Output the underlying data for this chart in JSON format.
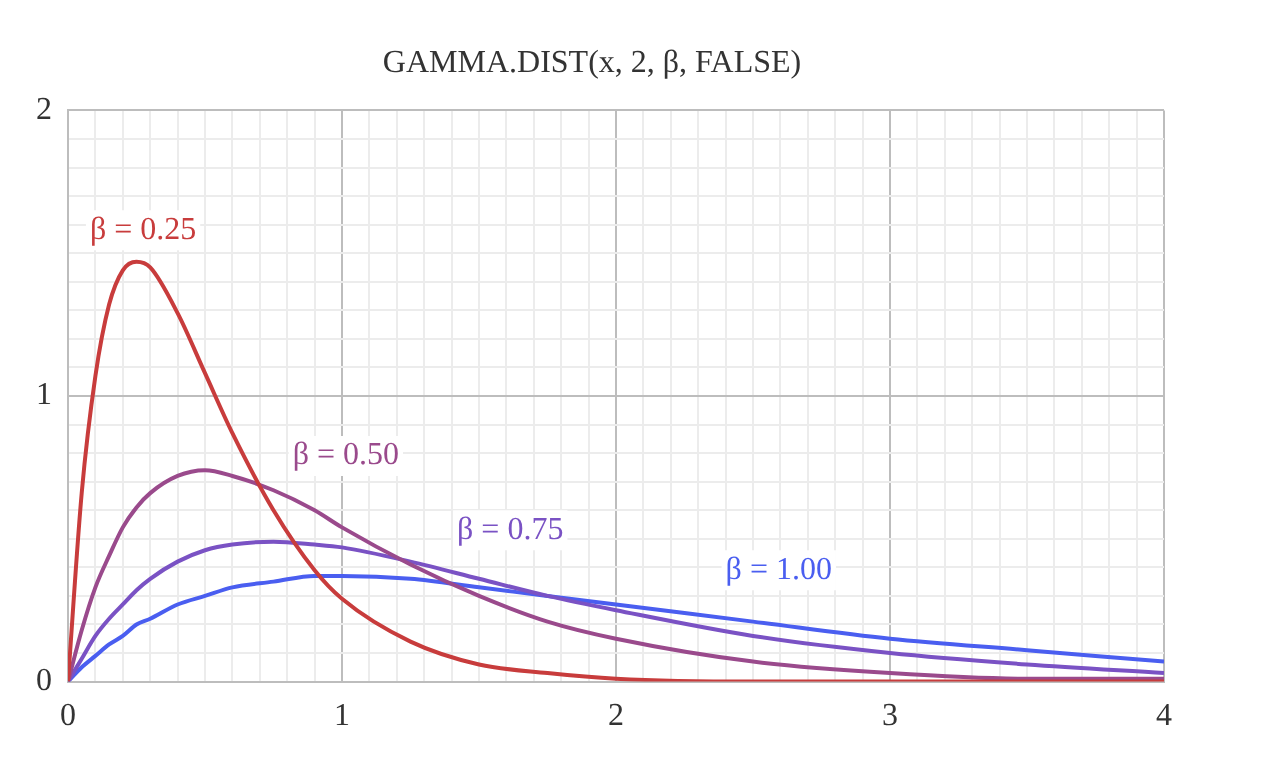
{
  "chart_data": {
    "type": "line",
    "title": "GAMMA.DIST(x, 2, β, FALSE)",
    "x": [
      0,
      0.05,
      0.1,
      0.15,
      0.2,
      0.25,
      0.3,
      0.4,
      0.5,
      0.6,
      0.75,
      0.9,
      1,
      1.25,
      1.5,
      1.75,
      2,
      2.5,
      3,
      3.5,
      4
    ],
    "series": [
      {
        "name": "β = 0.25",
        "color": "#c83c3c",
        "values": [
          0,
          0.66,
          1.07,
          1.32,
          1.44,
          1.47,
          1.45,
          1.29,
          1.08,
          0.87,
          0.6,
          0.39,
          0.29,
          0.14,
          0.06,
          0.03,
          0.01,
          0,
          0,
          0,
          0
        ]
      },
      {
        "name": "β = 0.50",
        "color": "#9a4a8c",
        "values": [
          0,
          0.18,
          0.33,
          0.44,
          0.54,
          0.61,
          0.66,
          0.72,
          0.74,
          0.72,
          0.67,
          0.6,
          0.54,
          0.41,
          0.3,
          0.21,
          0.15,
          0.07,
          0.03,
          0.01,
          0.01
        ]
      },
      {
        "name": "β = 0.75",
        "color": "#7a52c4",
        "values": [
          0,
          0.08,
          0.16,
          0.22,
          0.27,
          0.32,
          0.36,
          0.42,
          0.46,
          0.48,
          0.49,
          0.48,
          0.47,
          0.42,
          0.36,
          0.3,
          0.25,
          0.16,
          0.1,
          0.06,
          0.03
        ]
      },
      {
        "name": "β = 1.00",
        "color": "#4a5ef0",
        "values": [
          0,
          0.05,
          0.09,
          0.13,
          0.16,
          0.2,
          0.22,
          0.27,
          0.3,
          0.33,
          0.35,
          0.37,
          0.37,
          0.36,
          0.33,
          0.3,
          0.27,
          0.21,
          0.15,
          0.11,
          0.07
        ]
      }
    ],
    "xlim": [
      0,
      4
    ],
    "xticks": [
      0,
      {
        "value": 0.1,
        "label": null
      },
      {
        "value": 0.2,
        "label": null
      },
      {
        "value": 0.3,
        "label": null
      },
      {
        "value": 0.4,
        "label": null
      },
      {
        "value": 0.5,
        "label": null
      },
      {
        "value": 0.6,
        "label": null
      },
      {
        "value": 0.7,
        "label": null
      },
      {
        "value": 0.8,
        "label": null
      },
      {
        "value": 0.9,
        "label": null
      },
      1,
      {
        "value": 1.1,
        "label": null
      },
      {
        "value": 1.2,
        "label": null
      },
      {
        "value": 1.3,
        "label": null
      },
      {
        "value": 1.4,
        "label": null
      },
      {
        "value": 1.5,
        "label": null
      },
      {
        "value": 1.6,
        "label": null
      },
      {
        "value": 1.7,
        "label": null
      },
      {
        "value": 1.8,
        "label": null
      },
      {
        "value": 1.9,
        "label": null
      },
      2,
      {
        "value": 2.1,
        "label": null
      },
      {
        "value": 2.2,
        "label": null
      },
      {
        "value": 2.3,
        "label": null
      },
      {
        "value": 2.4,
        "label": null
      },
      {
        "value": 2.5,
        "label": null
      },
      {
        "value": 2.6,
        "label": null
      },
      {
        "value": 2.7,
        "label": null
      },
      {
        "value": 2.8,
        "label": null
      },
      {
        "value": 2.9,
        "label": null
      },
      3,
      {
        "value": 3.1,
        "label": null
      },
      {
        "value": 3.2,
        "label": null
      },
      {
        "value": 3.3,
        "label": null
      },
      {
        "value": 3.4,
        "label": null
      },
      {
        "value": 3.5,
        "label": null
      },
      {
        "value": 3.6,
        "label": null
      },
      {
        "value": 3.7,
        "label": null
      },
      {
        "value": 3.8,
        "label": null
      },
      {
        "value": 3.9,
        "label": null
      },
      4
    ],
    "ylim": [
      0,
      2
    ],
    "yticks": [
      0,
      {
        "value": 0.1,
        "label": null
      },
      {
        "value": 0.2,
        "label": null
      },
      {
        "value": 0.3,
        "label": null
      },
      {
        "value": 0.4,
        "label": null
      },
      {
        "value": 0.5,
        "label": null
      },
      {
        "value": 0.6,
        "label": null
      },
      {
        "value": 0.7,
        "label": null
      },
      {
        "value": 0.8,
        "label": null
      },
      {
        "value": 0.9,
        "label": null
      },
      1,
      {
        "value": 1.1,
        "label": null
      },
      {
        "value": 1.2,
        "label": null
      },
      {
        "value": 1.3,
        "label": null
      },
      {
        "value": 1.4,
        "label": null
      },
      {
        "value": 1.5,
        "label": null
      },
      {
        "value": 1.6,
        "label": null
      },
      {
        "value": 1.7,
        "label": null
      },
      {
        "value": 1.8,
        "label": null
      },
      {
        "value": 1.9,
        "label": null
      },
      2
    ],
    "grid": true,
    "legend": false
  }
}
